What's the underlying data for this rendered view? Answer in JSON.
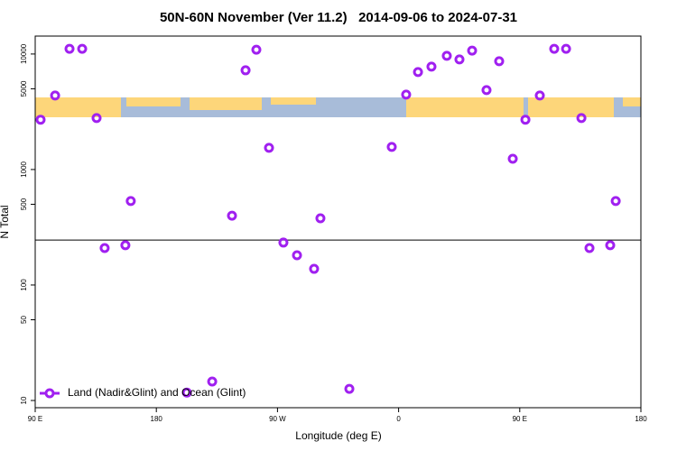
{
  "chart_data": {
    "type": "scatter",
    "title": "50N-60N November (Ver 11.2)   2014-09-06 to 2024-07-31",
    "xlabel": "Longitude (deg E)",
    "ylabel": "N Total",
    "x": [
      94,
      104.8,
      115.5,
      124.9,
      135.6,
      141.6,
      157,
      161,
      202.7,
      221.5,
      236.2,
      246.3,
      254.3,
      263.7,
      274.4,
      284.5,
      297.2,
      301.9,
      323.4,
      354.9,
      365.6,
      374.4,
      384.4,
      395.8,
      405.2,
      414.6,
      425.3,
      434.7,
      444.8,
      454.2,
      464.9,
      475.6,
      484.4,
      495.8,
      501.8,
      517.2,
      521.3
    ],
    "series": [
      {
        "name": "Land (Nadir&Glint) and Ocean (Glint)",
        "color": "#a020f0",
        "values": [
          2700,
          4370,
          11100,
          11100,
          2790,
          209,
          221,
          533,
          11.7,
          14.6,
          398,
          7230,
          10900,
          1540,
          233,
          181,
          138,
          378,
          12.6,
          1570,
          4450,
          6980,
          7770,
          9650,
          8980,
          10700,
          4870,
          8660,
          1240,
          2700,
          4370,
          11100,
          11100,
          2790,
          209,
          221,
          533
        ]
      }
    ],
    "xlim": [
      90,
      540
    ],
    "xticks": [
      {
        "value": 90,
        "label": "90 E"
      },
      180,
      {
        "value": 270,
        "label": "90 W"
      },
      {
        "value": 360,
        "label": "0"
      },
      {
        "value": 450,
        "label": "90 E"
      },
      {
        "value": 540,
        "label": "180"
      }
    ],
    "ylim": [
      8.66,
      14300
    ],
    "ylog": true,
    "yticks": [
      10,
      50,
      100,
      500,
      1000,
      5000,
      10000
    ],
    "hline": 245,
    "legend": "lower left"
  }
}
